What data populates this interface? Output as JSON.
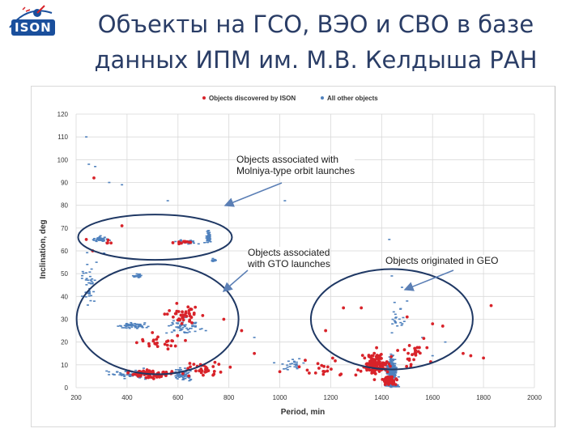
{
  "slide": {
    "logo_text": "ISON",
    "title_line1": "Объекты на ГСО, ВЭО и СВО в базе",
    "title_line2": "данных ИПМ им. М.В. Келдыша РАН"
  },
  "colors": {
    "isonSeries": "#d8232a",
    "otherSeries": "#4f81bd",
    "title": "#2a3d66",
    "ellipse": "#1f3864",
    "arrow": "#5b7fb5",
    "grid": "#d9d9d9"
  },
  "annotations": {
    "molniya_l1": "Objects associated with",
    "molniya_l2": "Molniya-type orbit launches",
    "gto_l1": "Objects associated",
    "gto_l2": "with GTO launches",
    "geo": "Objects originated in GEO"
  },
  "chart_data": {
    "type": "scatter",
    "title": "",
    "xlabel": "Period, min",
    "ylabel": "Inclination, deg",
    "xlim": [
      200,
      2000
    ],
    "ylim": [
      0,
      120
    ],
    "xticks": [
      "200",
      "400",
      "600",
      "800",
      "1000",
      "1200",
      "1400",
      "1600",
      "1800",
      "2000"
    ],
    "yticks": [
      "0",
      "10",
      "20",
      "30",
      "40",
      "50",
      "60",
      "70",
      "80",
      "90",
      "100",
      "110",
      "120"
    ],
    "grid": true,
    "legend_position": "top",
    "series": [
      {
        "name": "Objects discovered by ISON",
        "color": "#d8232a",
        "clusters": [
          {
            "x": 620,
            "y": 64,
            "sx": 50,
            "sy": 1.2,
            "n": 12
          },
          {
            "x": 330,
            "y": 64,
            "sx": 20,
            "sy": 1.5,
            "n": 4
          },
          {
            "x": 620,
            "y": 32,
            "sx": 90,
            "sy": 5,
            "n": 40
          },
          {
            "x": 550,
            "y": 20,
            "sx": 110,
            "sy": 4,
            "n": 25
          },
          {
            "x": 500,
            "y": 6,
            "sx": 140,
            "sy": 2.5,
            "n": 70
          },
          {
            "x": 700,
            "y": 8,
            "sx": 120,
            "sy": 5,
            "n": 30
          },
          {
            "x": 1200,
            "y": 8,
            "sx": 120,
            "sy": 5,
            "n": 20
          },
          {
            "x": 1380,
            "y": 10,
            "sx": 60,
            "sy": 6,
            "n": 120
          },
          {
            "x": 1430,
            "y": 3,
            "sx": 30,
            "sy": 2,
            "n": 70
          },
          {
            "x": 1530,
            "y": 15,
            "sx": 70,
            "sy": 8,
            "n": 25
          }
        ],
        "points": [
          {
            "x": 270,
            "y": 92
          },
          {
            "x": 240,
            "y": 65
          },
          {
            "x": 265,
            "y": 60
          },
          {
            "x": 380,
            "y": 71
          },
          {
            "x": 1320,
            "y": 35
          },
          {
            "x": 1600,
            "y": 28
          },
          {
            "x": 1640,
            "y": 27
          },
          {
            "x": 1720,
            "y": 15
          },
          {
            "x": 1830,
            "y": 36
          },
          {
            "x": 1800,
            "y": 13
          },
          {
            "x": 1750,
            "y": 14
          },
          {
            "x": 1100,
            "y": 12
          },
          {
            "x": 1000,
            "y": 7
          },
          {
            "x": 900,
            "y": 15
          },
          {
            "x": 850,
            "y": 25
          },
          {
            "x": 780,
            "y": 30
          },
          {
            "x": 1180,
            "y": 25
          },
          {
            "x": 1250,
            "y": 35
          },
          {
            "x": 1500,
            "y": 31
          }
        ]
      },
      {
        "name": "All other objects",
        "color": "#4f81bd",
        "clusters": [
          {
            "x": 720,
            "y": 66,
            "sx": 10,
            "sy": 3,
            "n": 60
          },
          {
            "x": 640,
            "y": 64,
            "sx": 60,
            "sy": 1,
            "n": 30
          },
          {
            "x": 300,
            "y": 65,
            "sx": 40,
            "sy": 1.5,
            "n": 40
          },
          {
            "x": 440,
            "y": 49,
            "sx": 25,
            "sy": 1,
            "n": 25
          },
          {
            "x": 740,
            "y": 56,
            "sx": 12,
            "sy": 1,
            "n": 15
          },
          {
            "x": 420,
            "y": 27,
            "sx": 80,
            "sy": 1.5,
            "n": 60
          },
          {
            "x": 620,
            "y": 27,
            "sx": 90,
            "sy": 4,
            "n": 60
          },
          {
            "x": 620,
            "y": 6,
            "sx": 40,
            "sy": 3,
            "n": 80
          },
          {
            "x": 400,
            "y": 6,
            "sx": 120,
            "sy": 2.5,
            "n": 50
          },
          {
            "x": 1440,
            "y": 8,
            "sx": 22,
            "sy": 6,
            "n": 240
          },
          {
            "x": 1440,
            "y": 1,
            "sx": 30,
            "sy": 1,
            "n": 80
          },
          {
            "x": 1460,
            "y": 30,
            "sx": 40,
            "sy": 9,
            "n": 20
          },
          {
            "x": 250,
            "y": 45,
            "sx": 30,
            "sy": 12,
            "n": 40
          },
          {
            "x": 1050,
            "y": 10,
            "sx": 100,
            "sy": 4,
            "n": 25
          }
        ],
        "points": [
          {
            "x": 240,
            "y": 110
          },
          {
            "x": 250,
            "y": 98
          },
          {
            "x": 275,
            "y": 97
          },
          {
            "x": 330,
            "y": 90
          },
          {
            "x": 380,
            "y": 89
          },
          {
            "x": 560,
            "y": 82
          },
          {
            "x": 1020,
            "y": 82
          },
          {
            "x": 1430,
            "y": 65
          },
          {
            "x": 1440,
            "y": 49
          },
          {
            "x": 1480,
            "y": 44
          },
          {
            "x": 1500,
            "y": 38
          },
          {
            "x": 1560,
            "y": 22
          },
          {
            "x": 1600,
            "y": 14
          },
          {
            "x": 1650,
            "y": 20
          },
          {
            "x": 900,
            "y": 22
          },
          {
            "x": 280,
            "y": 55
          },
          {
            "x": 310,
            "y": 59
          },
          {
            "x": 1080,
            "y": 55
          },
          {
            "x": 1480,
            "y": 56
          }
        ]
      }
    ]
  }
}
